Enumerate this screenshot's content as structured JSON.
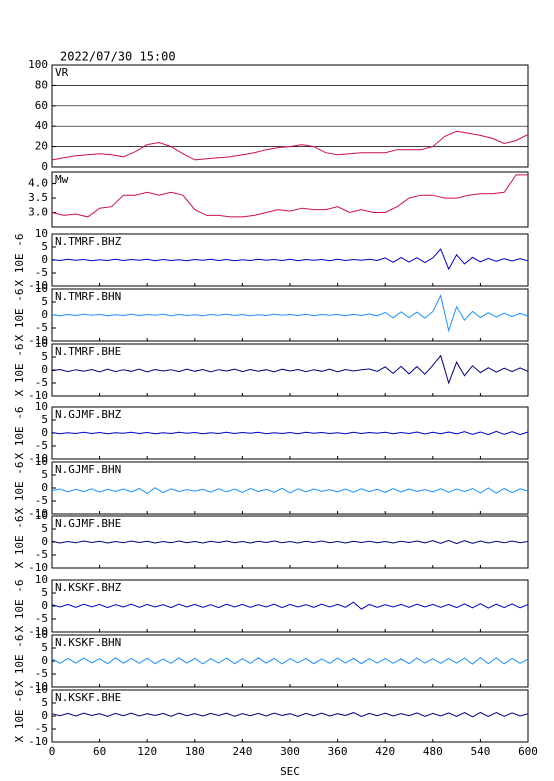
{
  "chart_data": [
    {
      "type": "line",
      "title": "2022/07/30 15:00",
      "ylabel": "VR",
      "grid": true,
      "x": [
        0,
        15,
        30,
        45,
        60,
        75,
        90,
        105,
        120,
        135,
        150,
        165,
        180,
        195,
        210,
        225,
        240,
        255,
        270,
        285,
        300,
        315,
        330,
        345,
        360,
        375,
        390,
        405,
        420,
        435,
        450,
        465,
        480,
        495,
        510,
        525,
        540,
        555,
        570,
        585,
        600
      ],
      "xlim": [
        0,
        600
      ],
      "ylim": [
        0,
        100
      ],
      "yticks": [
        0,
        20,
        40,
        60,
        80,
        100
      ],
      "series": [
        {
          "color": "#cc1144",
          "values": [
            7,
            9,
            11,
            12,
            13,
            12,
            10,
            15,
            22,
            24,
            20,
            13,
            7,
            8,
            9,
            10,
            12,
            14,
            17,
            19,
            20,
            22,
            20,
            14,
            12,
            13,
            14,
            14,
            14,
            17,
            17,
            17,
            20,
            30,
            35,
            33,
            31,
            28,
            23,
            26,
            32
          ]
        }
      ]
    },
    {
      "type": "line",
      "ylabel": "Mw",
      "grid": false,
      "x": [
        0,
        15,
        30,
        45,
        60,
        75,
        90,
        105,
        120,
        135,
        150,
        165,
        180,
        195,
        210,
        225,
        240,
        255,
        270,
        285,
        300,
        315,
        330,
        345,
        360,
        375,
        390,
        405,
        420,
        435,
        450,
        465,
        480,
        495,
        510,
        525,
        540,
        555,
        570,
        585,
        600
      ],
      "xlim": [
        0,
        600
      ],
      "ylim": [
        2.5,
        4.4
      ],
      "yticks": [
        {
          "value": 3,
          "label": "3.0"
        },
        3.5,
        {
          "value": 4,
          "label": "4.0"
        }
      ],
      "series": [
        {
          "color": "#cc1144",
          "values": [
            3.0,
            2.9,
            2.95,
            2.85,
            3.15,
            3.2,
            3.6,
            3.6,
            3.7,
            3.6,
            3.7,
            3.6,
            3.1,
            2.9,
            2.9,
            2.85,
            2.85,
            2.9,
            3.0,
            3.1,
            3.05,
            3.15,
            3.1,
            3.1,
            3.2,
            3.0,
            3.1,
            3.0,
            3.0,
            3.2,
            3.5,
            3.6,
            3.6,
            3.5,
            3.5,
            3.6,
            3.65,
            3.65,
            3.7,
            4.3,
            4.3
          ]
        }
      ]
    },
    {
      "type": "seismogram",
      "ylabel": "X 10E -6",
      "xlabel": "SEC",
      "x": [
        0,
        10,
        20,
        30,
        40,
        50,
        60,
        70,
        80,
        90,
        100,
        110,
        120,
        130,
        140,
        150,
        160,
        170,
        180,
        190,
        200,
        210,
        220,
        230,
        240,
        250,
        260,
        270,
        280,
        290,
        300,
        310,
        320,
        330,
        340,
        350,
        360,
        370,
        380,
        390,
        400,
        410,
        420,
        430,
        440,
        450,
        460,
        470,
        480,
        490,
        500,
        510,
        520,
        530,
        540,
        550,
        560,
        570,
        580,
        590,
        600
      ],
      "xlim": [
        0,
        600
      ],
      "xticks": [
        0,
        60,
        120,
        180,
        240,
        300,
        360,
        420,
        480,
        540,
        600
      ],
      "ylim": [
        -10,
        10
      ],
      "yticks": [
        10,
        5,
        0,
        -5,
        -10
      ],
      "series": [
        {
          "name": "N.TMRF.BHZ",
          "color": "#0000cd",
          "values": [
            0.2,
            -0.2,
            0.3,
            -0.1,
            0.2,
            -0.3,
            0.1,
            -0.2,
            0.3,
            -0.2,
            0.2,
            -0.1,
            0.3,
            -0.3,
            0.2,
            -0.2,
            0.1,
            -0.3,
            0.2,
            -0.1,
            0.3,
            -0.2,
            0.2,
            -0.3,
            0.1,
            -0.2,
            0.3,
            -0.1,
            0.2,
            -0.2,
            0.3,
            -0.3,
            0.2,
            -0.1,
            0.2,
            -0.3,
            0.3,
            -0.2,
            0.2,
            -0.1,
            0.3,
            -0.2,
            0.8,
            -0.9,
            1.0,
            -0.8,
            0.9,
            -1.0,
            0.8,
            4.2,
            -3.5,
            2.0,
            -1.5,
            1.0,
            -0.7,
            0.6,
            -0.5,
            0.5,
            -0.4,
            0.5,
            -0.3
          ]
        },
        {
          "name": "N.TMRF.BHN",
          "color": "#1e90ff",
          "values": [
            0.1,
            -0.3,
            0.2,
            -0.2,
            0.3,
            -0.1,
            0.2,
            -0.3,
            0.1,
            -0.2,
            0.3,
            -0.2,
            0.2,
            -0.1,
            0.3,
            -0.3,
            0.2,
            -0.2,
            0.1,
            -0.3,
            0.2,
            -0.1,
            0.3,
            -0.2,
            0.2,
            -0.3,
            0.1,
            -0.2,
            0.3,
            -0.1,
            0.2,
            -0.2,
            0.3,
            -0.3,
            0.2,
            -0.1,
            0.2,
            -0.3,
            0.3,
            -0.2,
            0.4,
            -0.3,
            1.0,
            -1.1,
            1.2,
            -1.0,
            1.1,
            -1.2,
            1.3,
            7.5,
            -6.0,
            3.2,
            -2.0,
            1.4,
            -1.0,
            0.9,
            -0.8,
            0.7,
            -0.6,
            0.6,
            -0.4
          ]
        },
        {
          "name": "N.TMRF.BHE",
          "color": "#000080",
          "values": [
            -0.3,
            0.2,
            -0.6,
            0.1,
            -0.5,
            0.2,
            -0.7,
            0.3,
            -0.6,
            0.1,
            -0.5,
            0.3,
            -0.7,
            0.2,
            -0.4,
            0.1,
            -0.6,
            0.3,
            -0.5,
            0.2,
            -0.7,
            0.1,
            -0.4,
            0.3,
            -0.6,
            0.2,
            -0.5,
            0.1,
            -0.7,
            0.3,
            -0.4,
            0.2,
            -0.6,
            0.1,
            -0.5,
            0.3,
            -0.7,
            0.2,
            -0.4,
            0.1,
            0.4,
            -0.5,
            1.2,
            -1.3,
            1.4,
            -1.5,
            1.3,
            -1.6,
            1.8,
            5.5,
            -5.0,
            3.0,
            -2.2,
            1.6,
            -1.0,
            0.9,
            -0.8,
            0.7,
            -0.6,
            0.8,
            -0.5
          ]
        },
        {
          "name": "N.GJMF.BHZ",
          "color": "#0000cd",
          "values": [
            0.2,
            -0.3,
            0.1,
            -0.2,
            0.3,
            -0.2,
            0.2,
            -0.3,
            0.1,
            -0.1,
            0.3,
            -0.2,
            0.2,
            -0.3,
            0.1,
            -0.2,
            0.3,
            -0.1,
            0.2,
            -0.3,
            0.1,
            -0.2,
            0.3,
            -0.2,
            0.2,
            -0.1,
            0.3,
            -0.3,
            0.1,
            -0.2,
            0.2,
            -0.3,
            0.3,
            -0.1,
            0.2,
            -0.2,
            0.1,
            -0.3,
            0.3,
            -0.2,
            0.2,
            -0.1,
            0.3,
            -0.3,
            0.2,
            -0.2,
            0.4,
            -0.4,
            0.3,
            -0.3,
            0.4,
            -0.3,
            0.5,
            -0.5,
            0.4,
            -0.6,
            0.6,
            -0.5,
            0.5,
            -0.6,
            0.4
          ]
        },
        {
          "name": "N.GJMF.BHN",
          "color": "#1e90ff",
          "values": [
            -1.0,
            -0.4,
            -1.5,
            -0.5,
            -1.4,
            -0.3,
            -1.6,
            -0.5,
            -1.3,
            -0.4,
            -1.5,
            -0.2,
            -2.1,
            0.1,
            -1.8,
            -0.3,
            -1.4,
            -0.6,
            -1.2,
            -0.5,
            -1.6,
            -0.3,
            -1.5,
            -0.4,
            -1.7,
            -0.2,
            -1.4,
            -0.5,
            -1.6,
            -0.1,
            -1.9,
            -0.3,
            -1.5,
            -0.4,
            -1.3,
            -0.6,
            -1.5,
            -0.4,
            -1.6,
            -0.3,
            -1.4,
            -0.5,
            -1.7,
            -0.2,
            -1.5,
            -0.4,
            -1.3,
            -0.6,
            -1.5,
            -0.3,
            -1.6,
            -0.4,
            -1.4,
            -0.2,
            -1.9,
            0.0,
            -2.0,
            -0.2,
            -1.8,
            -0.3,
            -1.2
          ]
        },
        {
          "name": "N.GJMF.BHE",
          "color": "#000080",
          "values": [
            0.3,
            -0.4,
            0.2,
            -0.3,
            0.4,
            -0.2,
            0.3,
            -0.4,
            0.2,
            -0.3,
            0.4,
            -0.2,
            0.3,
            -0.4,
            0.2,
            -0.3,
            0.4,
            -0.3,
            0.2,
            -0.4,
            0.3,
            -0.2,
            0.4,
            -0.3,
            0.2,
            -0.4,
            0.3,
            -0.2,
            0.4,
            -0.3,
            0.2,
            -0.4,
            0.3,
            -0.2,
            0.4,
            -0.3,
            0.2,
            -0.4,
            0.3,
            -0.2,
            0.3,
            -0.3,
            0.2,
            -0.4,
            0.3,
            -0.2,
            0.4,
            -0.3,
            0.5,
            -0.5,
            0.6,
            -0.6,
            0.5,
            -0.5,
            0.4,
            -0.4,
            0.3,
            -0.3,
            0.4,
            -0.3,
            0.2
          ]
        },
        {
          "name": "N.KSKF.BHZ",
          "color": "#0000cd",
          "values": [
            0.5,
            -0.4,
            0.6,
            -0.5,
            0.7,
            -0.3,
            0.6,
            -0.6,
            0.5,
            -0.4,
            0.7,
            -0.5,
            0.6,
            -0.4,
            0.5,
            -0.6,
            0.7,
            -0.4,
            0.6,
            -0.5,
            0.5,
            -0.6,
            0.7,
            -0.4,
            0.6,
            -0.5,
            0.5,
            -0.4,
            0.7,
            -0.6,
            0.6,
            -0.4,
            0.5,
            -0.5,
            0.7,
            -0.4,
            0.6,
            -0.5,
            1.5,
            -1.2,
            0.6,
            -0.5,
            0.5,
            -0.4,
            0.6,
            -0.5,
            0.7,
            -0.4,
            0.6,
            -0.5,
            0.6,
            -0.6,
            0.8,
            -0.7,
            0.9,
            -0.8,
            0.7,
            -0.6,
            0.8,
            -0.7,
            0.6
          ]
        },
        {
          "name": "N.KSKF.BHN",
          "color": "#1e90ff",
          "values": [
            0.8,
            -0.9,
            1.0,
            -0.8,
            1.1,
            -0.7,
            0.9,
            -1.0,
            1.2,
            -0.8,
            1.0,
            -0.9,
            1.1,
            -1.0,
            0.8,
            -0.9,
            1.2,
            -0.8,
            1.0,
            -1.1,
            0.9,
            -0.8,
            1.1,
            -1.0,
            0.9,
            -0.9,
            1.2,
            -0.8,
            1.0,
            -1.1,
            0.9,
            -0.7,
            1.0,
            -1.0,
            0.8,
            -0.9,
            1.1,
            -0.8,
            1.0,
            -1.0,
            0.9,
            -0.8,
            1.0,
            -0.9,
            0.8,
            -1.0,
            1.1,
            -0.8,
            0.9,
            -0.9,
            1.0,
            -0.8,
            1.1,
            -1.2,
            1.3,
            -1.0,
            1.2,
            -1.1,
            1.0,
            -0.9,
            0.8
          ]
        },
        {
          "name": "N.KSKF.BHE",
          "color": "#000080",
          "values": [
            0.9,
            0.1,
            1.0,
            0.0,
            1.1,
            0.2,
            0.9,
            -0.1,
            1.0,
            0.1,
            1.1,
            0.0,
            0.9,
            0.2,
            1.0,
            -0.1,
            1.1,
            0.1,
            0.9,
            0.0,
            1.0,
            0.2,
            1.1,
            -0.1,
            0.9,
            0.1,
            1.0,
            0.0,
            1.1,
            0.2,
            0.9,
            -0.1,
            1.0,
            0.1,
            1.1,
            0.0,
            0.9,
            0.2,
            1.3,
            -0.2,
            1.0,
            0.1,
            1.1,
            0.0,
            0.9,
            0.1,
            1.2,
            -0.1,
            1.0,
            0.0,
            1.2,
            -0.2,
            1.3,
            -0.3,
            1.4,
            -0.2,
            1.3,
            -0.1,
            1.2,
            0.0,
            0.9
          ]
        }
      ]
    }
  ]
}
